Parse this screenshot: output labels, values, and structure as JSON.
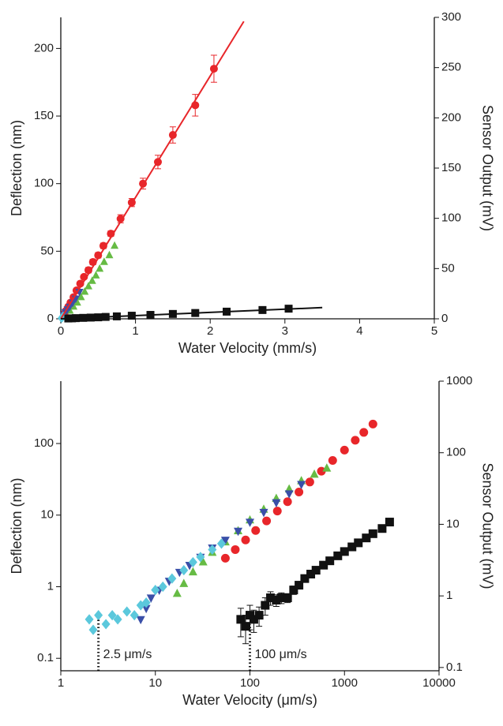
{
  "chart_data": [
    {
      "type": "scatter",
      "xlabel": "Water Velocity (mm/s)",
      "ylabel": "Deflection (nm)",
      "y2label": "Sensor Output (mV)",
      "xlim": [
        0,
        5
      ],
      "xticks": [
        0,
        1,
        2,
        3,
        4,
        5
      ],
      "ylim": [
        0,
        223
      ],
      "yticks": [
        0,
        50,
        100,
        150,
        200
      ],
      "y2lim": [
        0,
        300
      ],
      "y2ticks": [
        0,
        50,
        100,
        150,
        200,
        250,
        300
      ],
      "series": [
        {
          "color": "#e8262a",
          "marker": "circle",
          "x": [
            0.05,
            0.07,
            0.1,
            0.13,
            0.17,
            0.21,
            0.26,
            0.31,
            0.37,
            0.43,
            0.5,
            0.57,
            0.67,
            0.8,
            0.95,
            1.1,
            1.3,
            1.5,
            1.8,
            2.05
          ],
          "values": [
            4,
            6,
            9,
            12,
            16,
            21,
            26,
            31,
            36,
            42,
            47,
            54,
            63,
            74,
            86,
            100,
            116,
            136,
            158,
            185
          ],
          "errors": [
            1,
            1,
            1,
            1,
            1,
            1,
            1,
            1,
            2,
            2,
            2,
            2,
            2,
            3,
            3,
            4,
            5,
            6,
            8,
            10
          ]
        },
        {
          "color": "#66bb44",
          "marker": "triangle-up",
          "x": [
            0.12,
            0.17,
            0.22,
            0.27,
            0.32,
            0.37,
            0.42,
            0.47,
            0.52,
            0.58,
            0.65,
            0.72
          ],
          "values": [
            6,
            9,
            12,
            16,
            20,
            24,
            28,
            32,
            37,
            42,
            47,
            54
          ]
        },
        {
          "color": "#3a4fa8",
          "marker": "triangle-down",
          "x": [
            0.04,
            0.06,
            0.09,
            0.12,
            0.16,
            0.2,
            0.25
          ],
          "values": [
            3,
            5,
            7,
            9,
            12,
            15,
            20
          ]
        },
        {
          "color": "#5bc8dc",
          "marker": "diamond",
          "x": [
            0.01,
            0.02,
            0.03
          ],
          "values": [
            0.5,
            1,
            2
          ]
        },
        {
          "color": "#111111",
          "marker": "square",
          "x": [
            0.1,
            0.15,
            0.2,
            0.3,
            0.4,
            0.5,
            0.6,
            0.75,
            0.95,
            1.2,
            1.5,
            1.8,
            2.22,
            2.7,
            3.05
          ],
          "values": [
            0.25,
            0.35,
            0.5,
            0.7,
            0.9,
            1.1,
            1.4,
            1.8,
            2.3,
            2.9,
            3.6,
            4.3,
            5.3,
            6.5,
            7.5
          ]
        },
        {
          "color": "#e8262a",
          "mode": "line",
          "x": [
            0,
            2.45
          ],
          "values": [
            0,
            220
          ]
        },
        {
          "color": "#111111",
          "mode": "line",
          "x": [
            0,
            3.5
          ],
          "values": [
            0,
            8.3
          ]
        }
      ]
    },
    {
      "type": "scatter",
      "xlabel": "Water Velocity (μm/s)",
      "ylabel": "Deflection (nm)",
      "y2label": "Sensor Output (mV)",
      "xlog": true,
      "ylog": true,
      "xlim": [
        1,
        10000
      ],
      "xticks": [
        1,
        10,
        100,
        1000,
        10000
      ],
      "ylim": [
        0.067,
        743
      ],
      "yticks": [
        0.1,
        1,
        10,
        100
      ],
      "y2lim": [
        0.09,
        1000
      ],
      "y2ticks": [
        0.1,
        1,
        10,
        100,
        1000
      ],
      "series": [
        {
          "color": "#e8262a",
          "marker": "circle",
          "x": [
            55,
            70,
            90,
            115,
            150,
            195,
            250,
            330,
            430,
            570,
            750,
            1000,
            1300,
            1600,
            2000
          ],
          "values": [
            2.5,
            3.3,
            4.5,
            6.1,
            8.3,
            11.4,
            15.4,
            21,
            29,
            41,
            58,
            81,
            111,
            143,
            187
          ]
        },
        {
          "color": "#66bb44",
          "marker": "triangle-up",
          "x": [
            17,
            20,
            25,
            32,
            40,
            55,
            75,
            100,
            140,
            190,
            260,
            350,
            480,
            650
          ],
          "values": [
            0.8,
            1.1,
            1.6,
            2.2,
            3,
            4.2,
            6,
            8.5,
            12,
            17,
            23,
            30,
            37,
            45
          ]
        },
        {
          "color": "#3a4fa8",
          "marker": "triangle-down",
          "x": [
            7,
            8,
            9,
            11,
            14,
            18,
            23,
            30,
            40,
            55,
            75,
            100,
            140,
            190,
            260,
            350
          ],
          "values": [
            0.35,
            0.5,
            0.7,
            0.9,
            1.2,
            1.6,
            2,
            2.6,
            3.5,
            4.5,
            6,
            8,
            11,
            15,
            20,
            27
          ]
        },
        {
          "color": "#5bc8dc",
          "marker": "diamond",
          "x": [
            2,
            2.2,
            2.5,
            3,
            3.5,
            4,
            5,
            6,
            7,
            8,
            10,
            12,
            15,
            20,
            25,
            30,
            40,
            50
          ],
          "values": [
            0.35,
            0.25,
            0.4,
            0.3,
            0.4,
            0.35,
            0.45,
            0.4,
            0.55,
            0.6,
            0.9,
            1,
            1.3,
            1.7,
            2.2,
            2.6,
            3.3,
            4
          ]
        },
        {
          "color": "#111111",
          "marker": "square",
          "x": [
            80,
            90,
            100,
            110,
            125,
            145,
            165,
            190,
            215,
            250,
            290,
            330,
            380,
            440,
            500,
            600,
            700,
            850,
            1000,
            1200,
            1400,
            1700,
            2000,
            2500,
            3000
          ],
          "values": [
            0.35,
            0.28,
            0.4,
            0.35,
            0.4,
            0.55,
            0.7,
            0.65,
            0.7,
            0.7,
            0.9,
            1.05,
            1.3,
            1.5,
            1.7,
            2,
            2.3,
            2.7,
            3.1,
            3.6,
            4.1,
            4.8,
            5.5,
            6.5,
            8
          ],
          "errors": [
            0.15,
            0.12,
            0.15,
            0.12,
            0.12,
            0.15,
            0.15,
            0.12,
            0.12,
            0.1,
            0.12,
            0.12,
            0.12,
            0.12,
            0.12,
            0.1,
            0.1,
            0.1,
            0.1,
            0.1,
            0.1,
            0.1,
            0.1,
            0.1,
            0.1
          ]
        }
      ],
      "annotations": [
        {
          "text": "2.5 μm/s",
          "x": 2.5,
          "y": 0.35
        },
        {
          "text": "100 μm/s",
          "x": 100,
          "y": 0.3
        }
      ]
    }
  ]
}
